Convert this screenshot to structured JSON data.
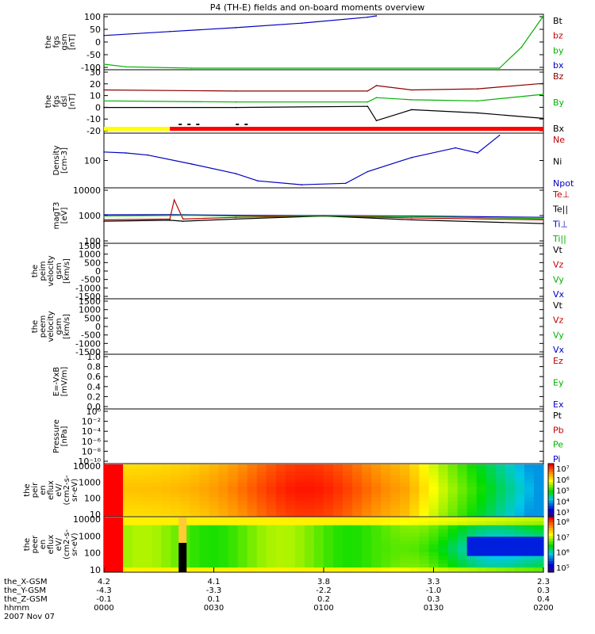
{
  "title": "P4 (TH-E) fields and on-board moments overview",
  "colors": {
    "black": "#000000",
    "red": "#c00000",
    "green": "#00b000",
    "blue": "#0000c0",
    "darkred": "#8b0000",
    "yellow": "#ffff00",
    "barred": "#ff0000"
  },
  "panels": [
    {
      "id": "fgs-gsm",
      "ylabel": [
        "the",
        "fgs",
        "gsm",
        "[nT]"
      ],
      "yticks": [
        "100",
        "50",
        "0",
        "-50",
        "-100"
      ],
      "legend": [
        {
          "t": "Bt",
          "c": "#000000"
        },
        {
          "t": "bz",
          "c": "#c00000"
        },
        {
          "t": "by",
          "c": "#00b000"
        },
        {
          "t": "bx",
          "c": "#0000c0"
        }
      ]
    },
    {
      "id": "fgs-dsl",
      "ylabel": [
        "the",
        "fgs",
        "dsl",
        "[nT]"
      ],
      "yticks": [
        "30",
        "20",
        "10",
        "0",
        "-10",
        "-20"
      ],
      "legend": [
        {
          "t": "Bz",
          "c": "#8b0000"
        },
        {
          "t": "By",
          "c": "#00b000"
        },
        {
          "t": "Bx",
          "c": "#000000"
        }
      ]
    },
    {
      "id": "density",
      "ylabel": [
        "Density",
        "[cm-3]"
      ],
      "yticks": [
        "100"
      ],
      "legend": [
        {
          "t": "Ne",
          "c": "#c00000"
        },
        {
          "t": "Ni",
          "c": "#000000"
        },
        {
          "t": "Npot",
          "c": "#0000c0"
        }
      ]
    },
    {
      "id": "temperature",
      "ylabel": [
        "magT3",
        "[eV]"
      ],
      "yticks": [
        "10000",
        "1000",
        "100"
      ],
      "legend": [
        {
          "t": "Te⊥",
          "c": "#c00000"
        },
        {
          "t": "Te||",
          "c": "#000000"
        },
        {
          "t": "Ti⊥",
          "c": "#0000c0"
        },
        {
          "t": "Ti||",
          "c": "#00b000"
        }
      ]
    },
    {
      "id": "peim-velocity",
      "ylabel": [
        "the",
        "peim",
        "velocity",
        "gsm",
        "[km/s]"
      ],
      "yticks": [
        "1500",
        "1000",
        "500",
        "0",
        "-500",
        "-1000",
        "-1500"
      ],
      "legend": [
        {
          "t": "Vt",
          "c": "#000000"
        },
        {
          "t": "Vz",
          "c": "#c00000"
        },
        {
          "t": "Vy",
          "c": "#00b000"
        },
        {
          "t": "Vx",
          "c": "#0000c0"
        }
      ]
    },
    {
      "id": "peem-velocity",
      "ylabel": [
        "the",
        "peem",
        "velocity",
        "gsm",
        "[km/s]"
      ],
      "yticks": [
        "1500",
        "1000",
        "500",
        "0",
        "-500",
        "-1000",
        "-1500"
      ],
      "legend": [
        {
          "t": "Vt",
          "c": "#000000"
        },
        {
          "t": "Vz",
          "c": "#c00000"
        },
        {
          "t": "Vy",
          "c": "#00b000"
        },
        {
          "t": "Vx",
          "c": "#0000c0"
        }
      ]
    },
    {
      "id": "efield",
      "ylabel": [
        "E=-VxB",
        "[mV/m]"
      ],
      "yticks": [
        "1.0",
        "0.8",
        "0.6",
        "0.4",
        "0.2",
        "0.0"
      ],
      "legend": [
        {
          "t": "Ez",
          "c": "#c00000"
        },
        {
          "t": "Ey",
          "c": "#00b000"
        },
        {
          "t": "Ex",
          "c": "#0000c0"
        }
      ]
    },
    {
      "id": "pressure",
      "ylabel": [
        "Pressure",
        "[nPa]"
      ],
      "yticks": [
        "10⁰",
        "10⁻²",
        "10⁻⁴",
        "10⁻⁶",
        "10⁻⁸",
        "10⁻¹⁰"
      ],
      "legend": [
        {
          "t": "Pt",
          "c": "#000000"
        },
        {
          "t": "Pb",
          "c": "#c00000"
        },
        {
          "t": "Pe",
          "c": "#00b000"
        },
        {
          "t": "Pi",
          "c": "#0000c0"
        }
      ]
    },
    {
      "id": "peir-eflux",
      "ylabel": [
        "the",
        "peir",
        "en",
        "eflux",
        "eV/",
        "(cm2-s-",
        "sr-eV)"
      ],
      "yticks": [
        "10000",
        "1000",
        "100",
        "10"
      ],
      "colorbar": [
        "10⁷",
        "10⁶",
        "10⁵",
        "10⁴",
        "10³"
      ]
    },
    {
      "id": "peer-eflux",
      "ylabel": [
        "the",
        "peer",
        "en",
        "eflux",
        "eV/",
        "(cm2-s-",
        "sr-eV)"
      ],
      "yticks": [
        "10000",
        "1000",
        "100",
        "10"
      ],
      "colorbar": [
        "10⁸",
        "10⁷",
        "10⁶",
        "10⁵"
      ]
    }
  ],
  "xaxis": {
    "rows": [
      {
        "label": "the_X-GSM",
        "values": [
          "4.2",
          "4.1",
          "3.8",
          "3.3",
          "2.3"
        ]
      },
      {
        "label": "the_Y-GSM",
        "values": [
          "-4.3",
          "-3.3",
          "-2.2",
          "-1.0",
          "0.3"
        ]
      },
      {
        "label": "the_Z-GSM",
        "values": [
          "-0.1",
          "0.1",
          "0.2",
          "0.3",
          "0.4"
        ]
      },
      {
        "label": "hhmm",
        "values": [
          "0000",
          "0030",
          "0100",
          "0130",
          "0200"
        ]
      }
    ],
    "date": "2007 Nov 07"
  },
  "chart_data": [
    {
      "type": "line",
      "title": "the fgs gsm [nT]",
      "ylim": [
        -100,
        100
      ],
      "series": [
        {
          "name": "bx",
          "x": [
            0,
            15,
            30,
            45,
            60,
            62
          ],
          "values": [
            25,
            40,
            55,
            72,
            95,
            100
          ]
        },
        {
          "name": "by",
          "x": [
            0,
            5,
            20,
            90,
            95,
            100
          ],
          "values": [
            -85,
            -95,
            -100,
            -100,
            -20,
            100
          ]
        }
      ]
    },
    {
      "type": "line",
      "title": "the fgs dsl [nT]",
      "ylim": [
        -25,
        30
      ],
      "series": [
        {
          "name": "Bz",
          "x": [
            0,
            30,
            60,
            62,
            70,
            85,
            100
          ],
          "values": [
            13,
            12,
            12,
            17,
            13,
            14,
            19
          ]
        },
        {
          "name": "By",
          "x": [
            0,
            30,
            60,
            62,
            70,
            85,
            100
          ],
          "values": [
            3,
            2,
            2,
            6,
            4,
            3,
            9
          ]
        },
        {
          "name": "Bx",
          "x": [
            0,
            30,
            60,
            62,
            70,
            85,
            100
          ],
          "values": [
            -3,
            -3,
            -2,
            -15,
            -5,
            -8,
            -13
          ]
        }
      ]
    },
    {
      "type": "line",
      "title": "Density [cm-3]",
      "ylim": [
        10,
        250
      ],
      "series": [
        {
          "name": "Npot",
          "x": [
            0,
            5,
            10,
            20,
            30,
            35,
            45,
            55,
            60,
            70,
            80,
            85,
            90
          ],
          "values": [
            85,
            80,
            70,
            40,
            22,
            14,
            11,
            12,
            25,
            60,
            110,
            80,
            240
          ]
        }
      ]
    },
    {
      "type": "line",
      "title": "magT3 [eV]",
      "ylim": [
        10,
        10000
      ],
      "series": [
        {
          "name": "Ti⊥",
          "x": [
            0,
            15,
            18,
            30,
            50,
            70,
            100
          ],
          "values": [
            350,
            360,
            350,
            330,
            320,
            300,
            250
          ]
        },
        {
          "name": "Te⊥",
          "x": [
            0,
            15,
            16,
            18,
            30,
            50,
            70,
            100
          ],
          "values": [
            180,
            200,
            2500,
            200,
            250,
            300,
            230,
            180
          ]
        },
        {
          "name": "Te||",
          "x": [
            0,
            15,
            18,
            30,
            50,
            70,
            100
          ],
          "values": [
            150,
            170,
            150,
            200,
            300,
            180,
            110
          ]
        },
        {
          "name": "Ti||",
          "x": [
            0,
            15,
            18,
            30,
            50,
            70,
            100
          ],
          "values": [
            300,
            320,
            330,
            300,
            310,
            280,
            210
          ]
        }
      ]
    },
    {
      "type": "heatmap",
      "title": "the peir en eflux",
      "ylim": [
        10,
        10000
      ],
      "crange": [
        "10³",
        "10⁷"
      ]
    },
    {
      "type": "heatmap",
      "title": "the peer en eflux",
      "ylim": [
        10,
        10000
      ],
      "crange": [
        "10⁵",
        "10⁸"
      ]
    }
  ]
}
